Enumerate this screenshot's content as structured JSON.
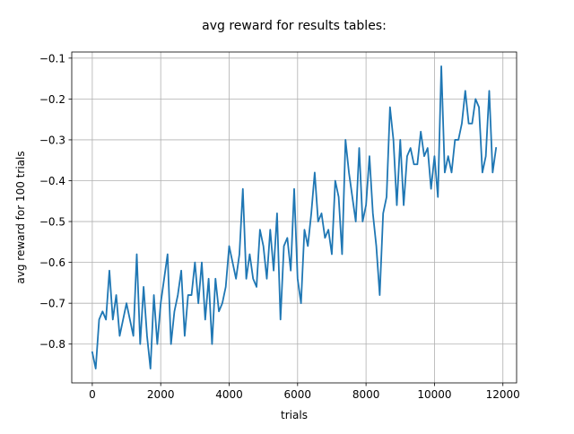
{
  "chart_data": {
    "type": "line",
    "title": "avg reward for results tables:",
    "xlabel": "trials",
    "ylabel": "avg reward for 100 trials",
    "xlim": [
      -600,
      12400
    ],
    "ylim": [
      -0.895,
      -0.085
    ],
    "xticks": [
      0,
      2000,
      4000,
      6000,
      8000,
      10000,
      12000
    ],
    "yticks": [
      -0.8,
      -0.7,
      -0.6,
      -0.5,
      -0.4,
      -0.3,
      -0.2,
      -0.1
    ],
    "xtick_labels": [
      "0",
      "2000",
      "4000",
      "6000",
      "8000",
      "10000",
      "12000"
    ],
    "ytick_labels": [
      "−0.8",
      "−0.7",
      "−0.6",
      "−0.5",
      "−0.4",
      "−0.3",
      "−0.2",
      "−0.1"
    ],
    "grid": true,
    "series": [
      {
        "color": "#1f77b4",
        "x": [
          0,
          100,
          200,
          300,
          400,
          500,
          600,
          700,
          800,
          900,
          1000,
          1100,
          1200,
          1300,
          1400,
          1500,
          1600,
          1700,
          1800,
          1900,
          2000,
          2100,
          2200,
          2300,
          2400,
          2500,
          2600,
          2700,
          2800,
          2900,
          3000,
          3100,
          3200,
          3300,
          3400,
          3500,
          3600,
          3700,
          3800,
          3900,
          4000,
          4100,
          4200,
          4300,
          4400,
          4500,
          4600,
          4700,
          4800,
          4900,
          5000,
          5100,
          5200,
          5300,
          5400,
          5500,
          5600,
          5700,
          5800,
          5900,
          6000,
          6100,
          6200,
          6300,
          6400,
          6500,
          6600,
          6700,
          6800,
          6900,
          7000,
          7100,
          7200,
          7300,
          7400,
          7500,
          7600,
          7700,
          7800,
          7900,
          8000,
          8100,
          8200,
          8300,
          8400,
          8500,
          8600,
          8700,
          8800,
          8900,
          9000,
          9100,
          9200,
          9300,
          9400,
          9500,
          9600,
          9700,
          9800,
          9900,
          10000,
          10100,
          10200,
          10300,
          10400,
          10500,
          10600,
          10700,
          10800,
          10900,
          11000,
          11100,
          11200,
          11300,
          11400,
          11500,
          11600,
          11700,
          11800
        ],
        "y": [
          -0.82,
          -0.86,
          -0.74,
          -0.72,
          -0.74,
          -0.62,
          -0.74,
          -0.68,
          -0.78,
          -0.74,
          -0.7,
          -0.74,
          -0.78,
          -0.58,
          -0.8,
          -0.66,
          -0.78,
          -0.86,
          -0.68,
          -0.8,
          -0.7,
          -0.64,
          -0.58,
          -0.8,
          -0.72,
          -0.68,
          -0.62,
          -0.78,
          -0.68,
          -0.68,
          -0.6,
          -0.7,
          -0.6,
          -0.74,
          -0.64,
          -0.8,
          -0.64,
          -0.72,
          -0.7,
          -0.66,
          -0.56,
          -0.6,
          -0.64,
          -0.58,
          -0.42,
          -0.64,
          -0.58,
          -0.64,
          -0.66,
          -0.52,
          -0.56,
          -0.64,
          -0.52,
          -0.62,
          -0.48,
          -0.74,
          -0.56,
          -0.54,
          -0.62,
          -0.42,
          -0.64,
          -0.7,
          -0.52,
          -0.56,
          -0.48,
          -0.38,
          -0.5,
          -0.48,
          -0.54,
          -0.52,
          -0.58,
          -0.4,
          -0.44,
          -0.58,
          -0.3,
          -0.38,
          -0.44,
          -0.5,
          -0.32,
          -0.5,
          -0.46,
          -0.34,
          -0.48,
          -0.56,
          -0.68,
          -0.48,
          -0.44,
          -0.22,
          -0.3,
          -0.46,
          -0.3,
          -0.46,
          -0.34,
          -0.32,
          -0.36,
          -0.36,
          -0.28,
          -0.34,
          -0.32,
          -0.42,
          -0.34,
          -0.44,
          -0.12,
          -0.38,
          -0.34,
          -0.38,
          -0.3,
          -0.3,
          -0.26,
          -0.18,
          -0.26,
          -0.26,
          -0.2,
          -0.22,
          -0.38,
          -0.34,
          -0.18,
          -0.38,
          -0.32
        ]
      }
    ]
  }
}
